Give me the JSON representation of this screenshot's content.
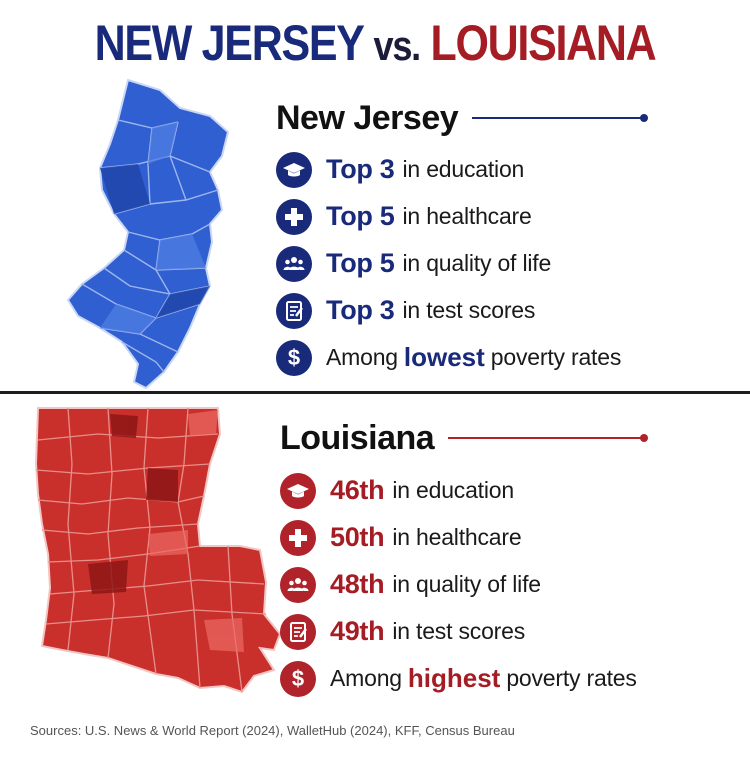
{
  "title": {
    "left": "NEW JERSEY",
    "middle": "vs.",
    "right": "LOUISIANA"
  },
  "colors": {
    "new_jersey": "#1a2a7a",
    "louisiana": "#a51d24",
    "nj_map": "#2f5fd0",
    "la_map": "#c9302c"
  },
  "new_jersey": {
    "name": "New Jersey",
    "items": [
      {
        "icon": "graduation-cap-icon",
        "rank": "Top 3",
        "label": "in education"
      },
      {
        "icon": "medical-cross-icon",
        "rank": "Top 5",
        "label": "in healthcare"
      },
      {
        "icon": "people-group-icon",
        "rank": "Top 5",
        "label": "in quality of life"
      },
      {
        "icon": "test-document-icon",
        "rank": "Top 3",
        "label": "in test scores"
      },
      {
        "icon": "dollar-icon",
        "pre": "Among",
        "emphasis": "lowest",
        "post": "poverty rates"
      }
    ]
  },
  "louisiana": {
    "name": "Louisiana",
    "items": [
      {
        "icon": "graduation-cap-icon",
        "rank": "46th",
        "label": "in education"
      },
      {
        "icon": "medical-cross-icon",
        "rank": "50th",
        "label": "in healthcare"
      },
      {
        "icon": "people-group-icon",
        "rank": "48th",
        "label": "in quality of life"
      },
      {
        "icon": "test-document-icon",
        "rank": "49th",
        "label": "in test scores"
      },
      {
        "icon": "dollar-icon",
        "pre": "Among",
        "emphasis": "highest",
        "post": "poverty rates"
      }
    ]
  },
  "sources": "Sources: U.S. News & World Report (2024), WalletHub (2024), KFF, Census Bureau"
}
